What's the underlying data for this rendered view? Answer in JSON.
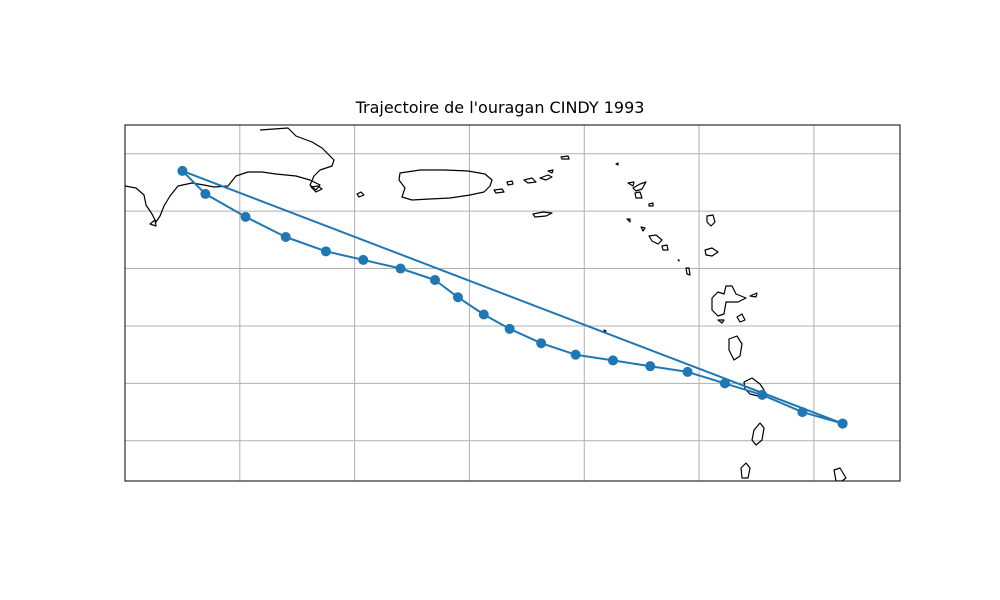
{
  "title": "Trajectoire de l'ouragan CINDY 1993",
  "colors": {
    "track": "#1f77b4",
    "grid": "#b0b0b0",
    "coast": "#000000"
  },
  "chart_data": {
    "type": "line",
    "title": "Trajectoire de l'ouragan CINDY 1993",
    "xlabel": "",
    "ylabel": "",
    "grid": true,
    "xlim": [
      -72,
      -58.5
    ],
    "ylim": [
      12.3,
      18.5
    ],
    "series": [
      {
        "values": [
          {
            "x": -59.5,
            "y": 13.3
          },
          {
            "x": -60.2,
            "y": 13.5
          },
          {
            "x": -60.9,
            "y": 13.8
          },
          {
            "x": -61.55,
            "y": 14.0
          },
          {
            "x": -62.2,
            "y": 14.2
          },
          {
            "x": -62.85,
            "y": 14.3
          },
          {
            "x": -63.5,
            "y": 14.4
          },
          {
            "x": -64.15,
            "y": 14.5
          },
          {
            "x": -64.75,
            "y": 14.7
          },
          {
            "x": -65.3,
            "y": 14.95
          },
          {
            "x": -65.75,
            "y": 15.2
          },
          {
            "x": -66.2,
            "y": 15.5
          },
          {
            "x": -66.6,
            "y": 15.8
          },
          {
            "x": -67.2,
            "y": 16.0
          },
          {
            "x": -67.85,
            "y": 16.15
          },
          {
            "x": -68.5,
            "y": 16.3
          },
          {
            "x": -69.2,
            "y": 16.55
          },
          {
            "x": -69.9,
            "y": 16.9
          },
          {
            "x": -70.6,
            "y": 17.3
          },
          {
            "x": -71.0,
            "y": 17.7
          },
          {
            "x": -59.5,
            "y": 13.3
          }
        ]
      }
    ]
  }
}
